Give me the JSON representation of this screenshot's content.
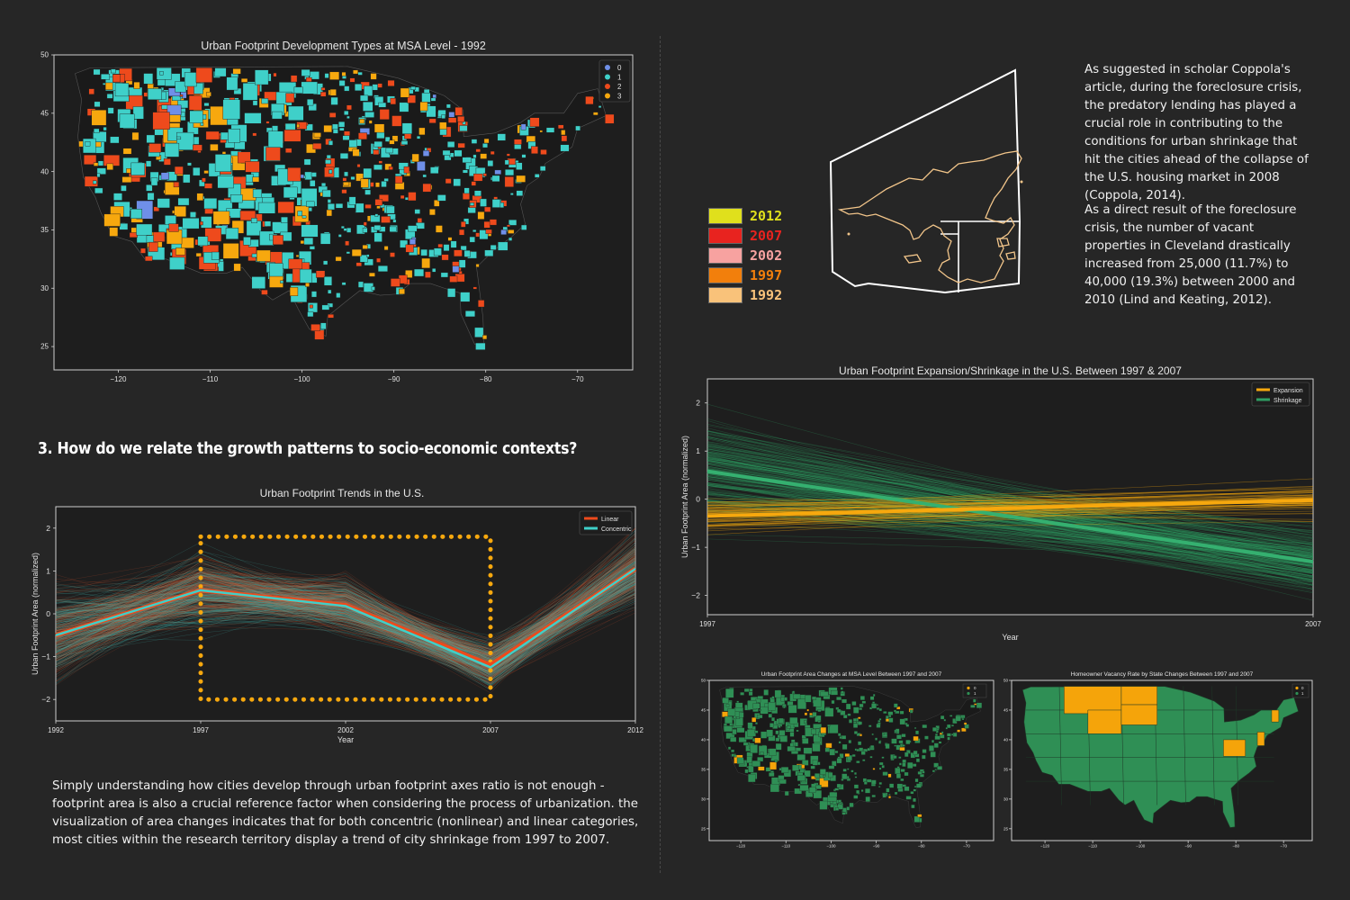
{
  "colors": {
    "bg": "#262626",
    "cat0": "#6f8fe8",
    "cat1": "#3fd0c9",
    "cat2": "#ee4a1c",
    "cat3": "#f7a80e",
    "expansion": "#f7a80e",
    "shrinkage": "#2f9e63",
    "linear": "#ee4a1c",
    "concentric": "#3fd0c9",
    "mapGreen": "#2f8f55",
    "mapOrange": "#f5a40a"
  },
  "heading_q3": "3. How do we relate the growth patterns to socio-economic contexts?",
  "paragraph_coppola": "As suggested in scholar Coppola's article, during the foreclosure crisis, the predatory lending has played a crucial role in contributing to the conditions for urban shrinkage that hit the cities ahead of the collapse of the U.S. housing market in 2008 (Coppola, 2014).",
  "paragraph_cleveland": "As a direct result of the foreclosure crisis, the number of vacant properties in Cleveland drastically increased from 25,000 (11.7%) to 40,000 (19.3%) between 2000 and 2010 (Lind and Keating, 2012).",
  "paragraph_area": "Simply understanding how cities develop through urban footprint axes ratio is not enough - footprint area is also a crucial reference factor when considering the process of urbanization. the visualization of area changes indicates that for both concentric (nonlinear) and linear categories, most cities within the research territory display a trend of city shrinkage from 1997 to 2007.",
  "year_legend": [
    {
      "label": "2012",
      "color": "#e0e01c"
    },
    {
      "label": "2007",
      "color": "#e8231f"
    },
    {
      "label": "2002",
      "color": "#f7a2a0"
    },
    {
      "label": "1997",
      "color": "#f27f0c"
    },
    {
      "label": "1992",
      "color": "#f9c27a"
    }
  ],
  "chart_data": [
    {
      "id": "msa-map-1992",
      "type": "map",
      "title": "Urban Footprint Development Types at MSA Level - 1992",
      "xlim": [
        -127,
        -64
      ],
      "ylim": [
        23,
        50
      ],
      "x_ticks": [
        -120,
        -110,
        -100,
        -90,
        -80,
        -70
      ],
      "y_ticks": [
        25,
        30,
        35,
        40,
        45,
        50
      ],
      "legend": [
        "0",
        "1",
        "2",
        "3"
      ]
    },
    {
      "id": "footprint-trends",
      "type": "line",
      "title": "Urban Footprint Trends in the U.S.",
      "xlabel": "Year",
      "ylabel": "Urban Footprint Area (normalized)",
      "categories": [
        "1992",
        "1997",
        "2002",
        "2007",
        "2012"
      ],
      "ylim": [
        -2.5,
        2.5
      ],
      "y_ticks": [
        -2,
        -1,
        0,
        1,
        2
      ],
      "highlight_box": {
        "from": "1997",
        "to": "2007",
        "y_range": [
          -2,
          1.8
        ]
      },
      "series": [
        {
          "name": "Linear",
          "values": [
            -0.5,
            0.55,
            0.2,
            -1.2,
            1.05
          ]
        },
        {
          "name": "Concentric",
          "values": [
            -0.5,
            0.55,
            0.18,
            -1.25,
            1.05
          ]
        }
      ]
    },
    {
      "id": "expansion-shrinkage",
      "type": "line",
      "title": "Urban Footprint Expansion/Shrinkage in the U.S. Between 1997 & 2007",
      "xlabel": "Year",
      "ylabel": "Urban Footprint Area (normalized)",
      "x": [
        "1997",
        "2007"
      ],
      "ylim": [
        -2.4,
        2.5
      ],
      "y_ticks": [
        -2,
        -1,
        0,
        1,
        2
      ],
      "series": [
        {
          "name": "Expansion",
          "values": [
            -0.35,
            -0.02
          ]
        },
        {
          "name": "Shrinkage",
          "values": [
            0.58,
            -1.3
          ]
        }
      ]
    },
    {
      "id": "msa-area-changes",
      "type": "map",
      "title": "Urban Footprint Area Changes at MSA Level Between 1997 and 2007",
      "xlim": [
        -127,
        -64
      ],
      "ylim": [
        23,
        50
      ],
      "x_ticks": [
        -120,
        -110,
        -100,
        -90,
        -80,
        -70
      ],
      "y_ticks": [
        25,
        30,
        35,
        40,
        45,
        50
      ],
      "legend": [
        "0",
        "1"
      ]
    },
    {
      "id": "vacancy-rate",
      "type": "map",
      "title": "Homeowner Vacancy Rate by State Changes Between 1997 and 2007",
      "xlim": [
        -127,
        -64
      ],
      "ylim": [
        23,
        50
      ],
      "x_ticks": [
        -120,
        -110,
        -100,
        -90,
        -80,
        -70
      ],
      "y_ticks": [
        25,
        30,
        35,
        40,
        45,
        50
      ],
      "legend": [
        "0",
        "1"
      ]
    }
  ]
}
